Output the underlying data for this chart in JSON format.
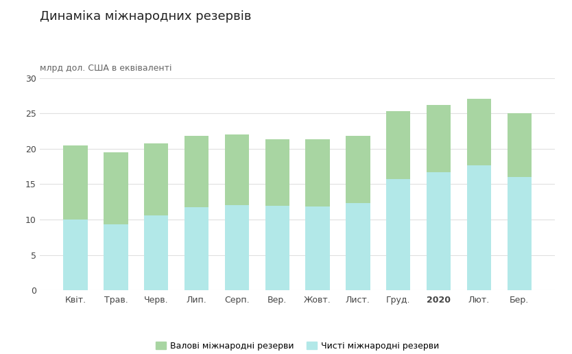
{
  "title": "Динаміка міжнародних резервів",
  "ylabel": "млрд дол. США в еквіваленті",
  "categories": [
    "Квіт.",
    "Трав.",
    "Черв.",
    "Лип.",
    "Серп.",
    "Вер.",
    "Жовт.",
    "Лист.",
    "Груд.",
    "2020",
    "Лют.",
    "Бер."
  ],
  "gross_reserves": [
    20.5,
    19.5,
    20.7,
    21.8,
    22.0,
    21.3,
    21.3,
    21.8,
    25.3,
    26.2,
    27.0,
    25.0
  ],
  "net_reserves": [
    10.0,
    9.3,
    10.6,
    11.7,
    12.0,
    11.9,
    11.8,
    12.3,
    15.7,
    16.7,
    17.6,
    16.0
  ],
  "gross_color": "#a8d5a2",
  "net_color": "#b2e8e8",
  "background_color": "#ffffff",
  "grid_color": "#e0e0e0",
  "title_fontsize": 13,
  "ylabel_fontsize": 9,
  "tick_fontsize": 9,
  "legend_labels": [
    "Валові міжнародні резерви",
    "Чисті міжнародні резерви"
  ],
  "ylim": [
    0,
    30
  ],
  "yticks": [
    0,
    5,
    10,
    15,
    20,
    25,
    30
  ],
  "bold_2020_index": 9,
  "bar_width": 0.6
}
